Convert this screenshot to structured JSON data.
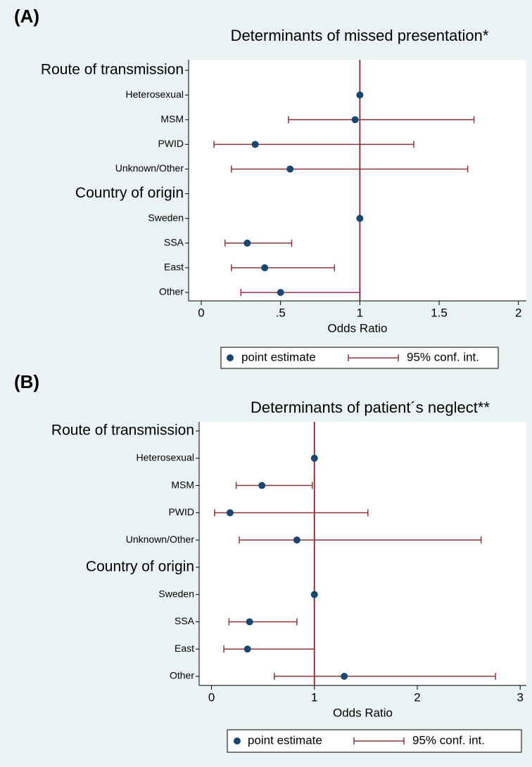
{
  "chart_data": [
    {
      "type": "forest",
      "panel_label": "(A)",
      "title": "Determinants of missed presentation*",
      "x_label": "Odds Ratio",
      "categories": [
        "Route of transmission",
        "Heterosexual",
        "MSM",
        "PWID",
        "Unknown/Other",
        "Country of origin",
        "Sweden",
        "SSA",
        "East",
        "Other"
      ],
      "series": [
        {
          "name": "point estimate",
          "color": "#1a476f",
          "values": [
            null,
            1,
            0.97,
            0.34,
            0.56,
            null,
            1,
            0.29,
            0.4,
            0.5
          ]
        },
        {
          "name": "95% conf. int.",
          "color": "#90353b",
          "lower": [
            null,
            null,
            0.55,
            0.08,
            0.19,
            null,
            null,
            0.15,
            0.19,
            0.25
          ],
          "upper": [
            null,
            null,
            1.72,
            1.34,
            1.68,
            null,
            null,
            0.57,
            0.84,
            1.0
          ]
        }
      ],
      "reference_line": 1,
      "xlim": [
        -0.08,
        2.05
      ],
      "xticks": [
        0,
        {
          "value": 0.5,
          "label": ".5"
        },
        1,
        1.5,
        2
      ]
    },
    {
      "type": "forest",
      "panel_label": "(B)",
      "title": "Determinants of patient´s neglect**",
      "x_label": "Odds Ratio",
      "categories": [
        "Route of transmission",
        "Heterosexual",
        "MSM",
        "PWID",
        "Unknown/Other",
        "Country of origin",
        "Sweden",
        "SSA",
        "East",
        "Other"
      ],
      "series": [
        {
          "name": "point estimate",
          "color": "#1a476f",
          "values": [
            null,
            1,
            0.49,
            0.18,
            0.83,
            null,
            1,
            0.37,
            0.35,
            1.29
          ]
        },
        {
          "name": "95% conf. int.",
          "color": "#90353b",
          "lower": [
            null,
            null,
            0.24,
            0.03,
            0.27,
            null,
            null,
            0.17,
            0.12,
            0.61
          ],
          "upper": [
            null,
            null,
            0.98,
            1.52,
            2.62,
            null,
            null,
            0.83,
            1.0,
            2.76
          ]
        }
      ],
      "reference_line": 1,
      "xlim": [
        -0.12,
        3.06
      ],
      "xticks": [
        0,
        1,
        2,
        3
      ]
    }
  ]
}
